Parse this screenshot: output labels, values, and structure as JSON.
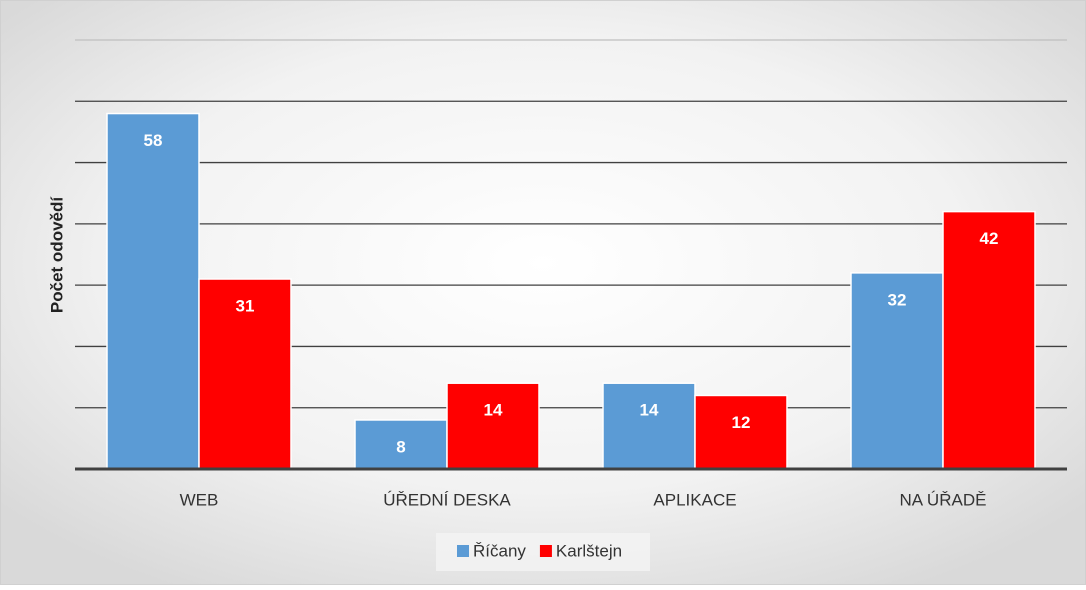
{
  "chart_data": {
    "type": "bar",
    "y_label": "Počet odovědí",
    "categories": [
      "WEB",
      "ÚŘEDNÍ DESKA",
      "APLIKACE",
      "NA ÚŘADĚ"
    ],
    "series": [
      {
        "name": "Říčany",
        "color": "#5b9bd5",
        "values": [
          58,
          8,
          14,
          32
        ]
      },
      {
        "name": "Karlštejn",
        "color": "#ff0000",
        "values": [
          31,
          14,
          12,
          42
        ]
      }
    ],
    "ylim": [
      0,
      70
    ],
    "yticks": [
      0,
      10,
      20,
      30,
      40,
      50,
      60,
      70
    ],
    "grid": true,
    "legend": "bottom"
  }
}
